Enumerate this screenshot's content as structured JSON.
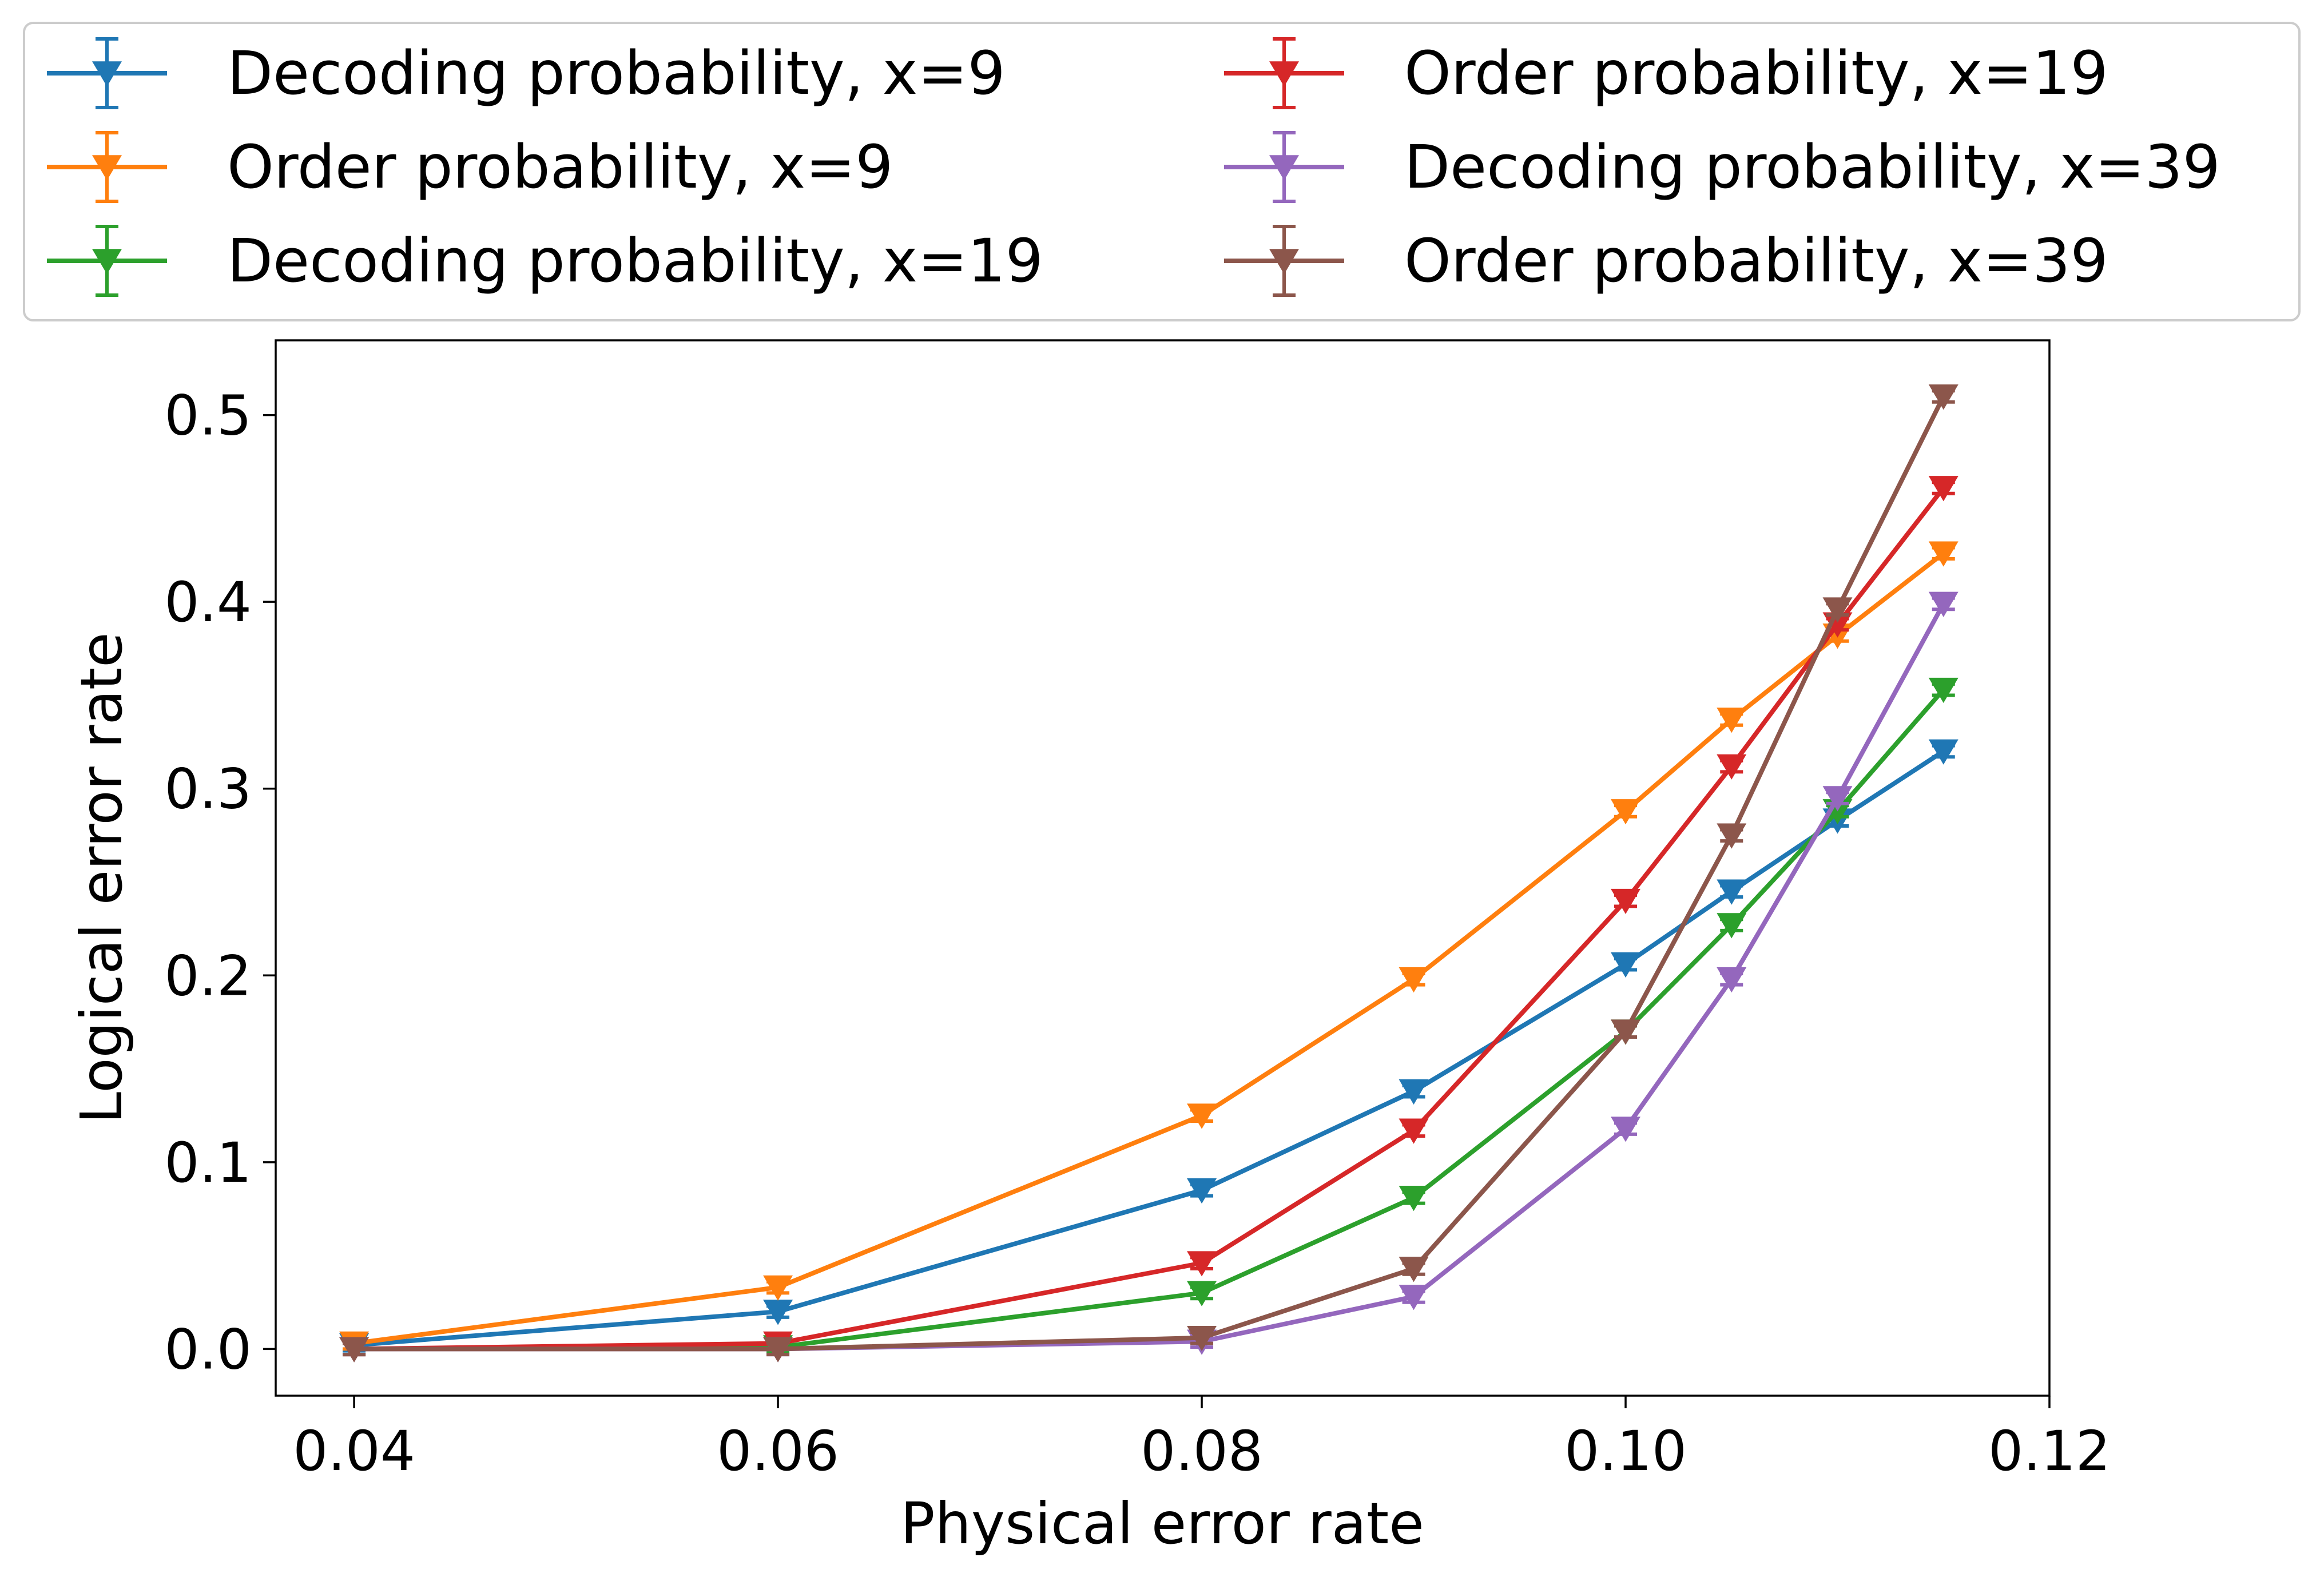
{
  "chart_data": {
    "type": "line",
    "xlabel": "Physical error rate",
    "ylabel": "Logical error rate",
    "xlim": [
      0.0363,
      0.12
    ],
    "ylim": [
      -0.025,
      0.54
    ],
    "xticks": [
      "0.04",
      "0.06",
      "0.08",
      "0.10",
      "0.12"
    ],
    "xtick_values": [
      0.04,
      0.06,
      0.08,
      0.1,
      0.12
    ],
    "yticks": [
      "0.0",
      "0.1",
      "0.2",
      "0.3",
      "0.4",
      "0.5"
    ],
    "ytick_values": [
      0.0,
      0.1,
      0.2,
      0.3,
      0.4,
      0.5
    ],
    "grid": false,
    "legend_position": "top (above plot, two columns)",
    "marker": "triangle-down with error bars",
    "series": [
      {
        "name": "Decoding probability, x=9",
        "color": "#1f77b4",
        "x": [
          0.04,
          0.06,
          0.08,
          0.09,
          0.1,
          0.105,
          0.11,
          0.115
        ],
        "y": [
          0.002,
          0.02,
          0.085,
          0.138,
          0.206,
          0.245,
          0.283,
          0.32
        ]
      },
      {
        "name": "Order probability, x=9",
        "color": "#ff7f0e",
        "x": [
          0.04,
          0.06,
          0.08,
          0.09,
          0.1,
          0.105,
          0.11,
          0.115
        ],
        "y": [
          0.003,
          0.033,
          0.125,
          0.198,
          0.288,
          0.337,
          0.382,
          0.426
        ]
      },
      {
        "name": "Decoding probability, x=19",
        "color": "#2ca02c",
        "x": [
          0.04,
          0.06,
          0.08,
          0.09,
          0.1,
          0.105,
          0.11,
          0.115
        ],
        "y": [
          0.0,
          0.001,
          0.03,
          0.081,
          0.17,
          0.227,
          0.288,
          0.353
        ]
      },
      {
        "name": "Order probability, x=19",
        "color": "#d62728",
        "x": [
          0.04,
          0.06,
          0.08,
          0.09,
          0.1,
          0.105,
          0.11,
          0.115
        ],
        "y": [
          0.0,
          0.003,
          0.046,
          0.117,
          0.24,
          0.312,
          0.388,
          0.461
        ]
      },
      {
        "name": "Decoding probability, x=39",
        "color": "#9467bd",
        "x": [
          0.04,
          0.06,
          0.08,
          0.09,
          0.1,
          0.105,
          0.11,
          0.115
        ],
        "y": [
          0.0,
          0.0,
          0.004,
          0.028,
          0.118,
          0.198,
          0.295,
          0.399
        ]
      },
      {
        "name": "Order probability, x=39",
        "color": "#8c564b",
        "x": [
          0.04,
          0.06,
          0.08,
          0.09,
          0.1,
          0.105,
          0.11,
          0.115
        ],
        "y": [
          0.0,
          0.0,
          0.006,
          0.043,
          0.17,
          0.275,
          0.396,
          0.51
        ]
      }
    ],
    "legend_columns": [
      [
        0,
        1,
        2
      ],
      [
        3,
        4,
        5
      ]
    ]
  }
}
